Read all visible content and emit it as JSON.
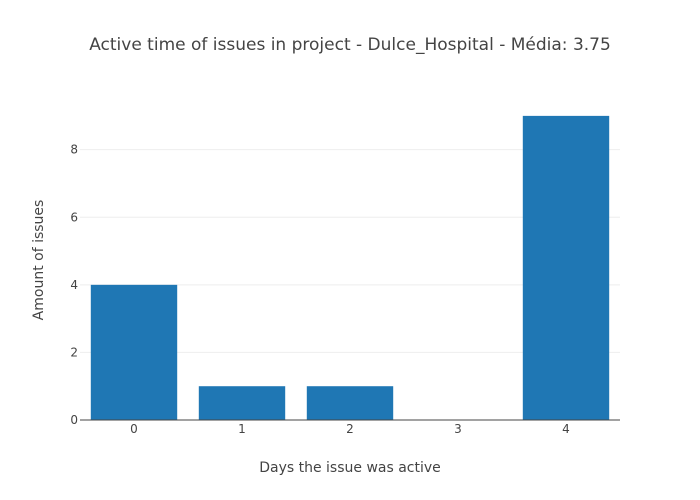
{
  "chart_data": {
    "type": "bar",
    "title": "Active time of issues in project - Dulce_Hospital - Média: 3.75",
    "xlabel": "Days the issue was active",
    "ylabel": "Amount of issues",
    "categories": [
      "0",
      "1",
      "2",
      "3",
      "4"
    ],
    "values": [
      4,
      1,
      1,
      0,
      9
    ],
    "ylim": [
      0,
      9.47
    ],
    "yticks": [
      0,
      2,
      4,
      6,
      8
    ],
    "grid": true,
    "legend": "none",
    "bar_color": "#1f77b4"
  }
}
